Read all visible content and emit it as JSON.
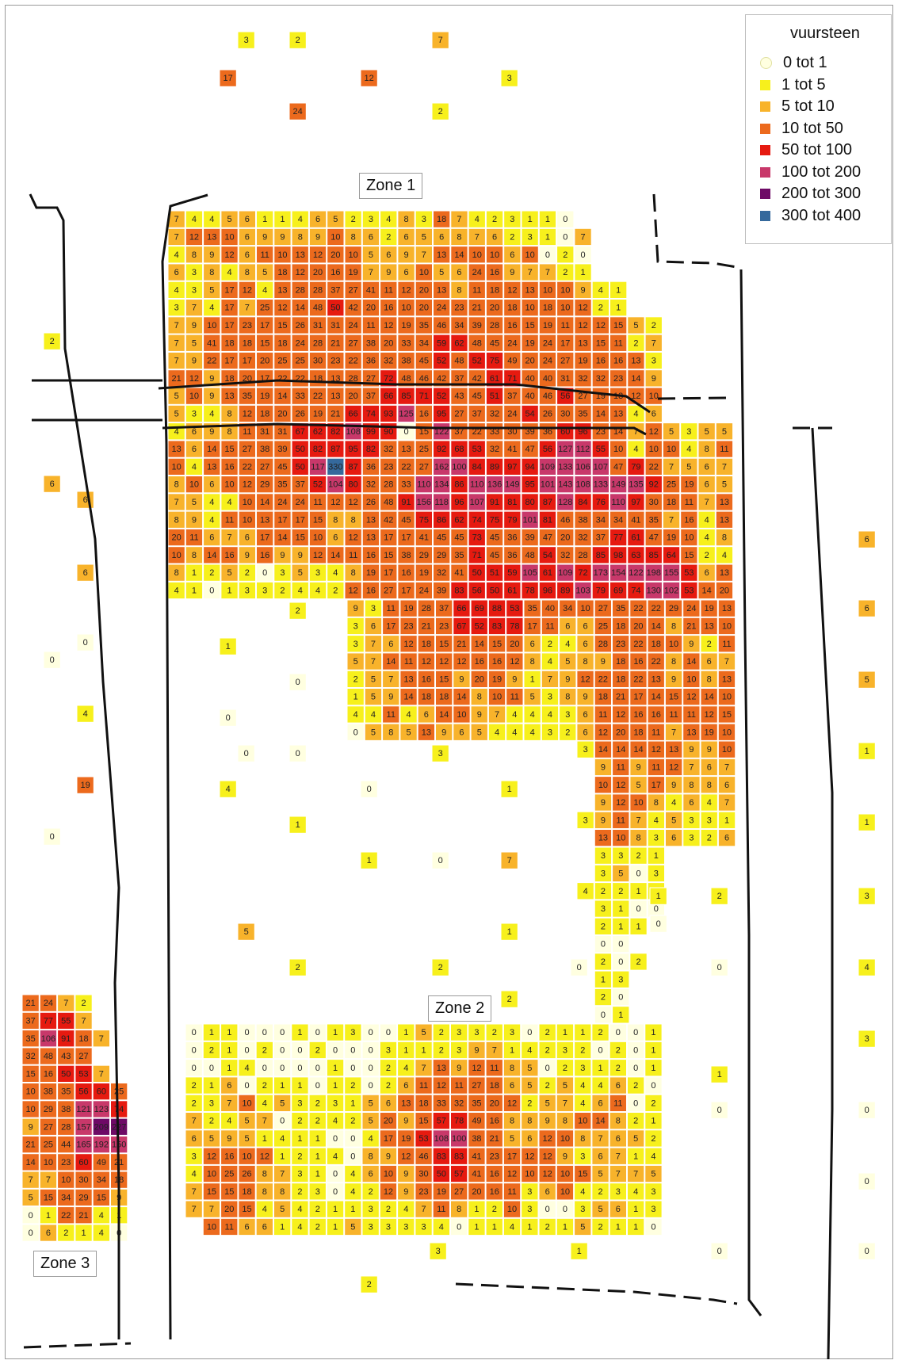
{
  "legend": {
    "title": "vuursteen",
    "items": [
      {
        "label": "0  tot  1",
        "color": "#ffffe0"
      },
      {
        "label": "1  tot  5",
        "color": "#f7f01c"
      },
      {
        "label": "5  tot  10",
        "color": "#f8b32b"
      },
      {
        "label": "10  tot  50",
        "color": "#ec6a1d"
      },
      {
        "label": "50  tot  100",
        "color": "#e61a10"
      },
      {
        "label": "100  tot  200",
        "color": "#c8386a"
      },
      {
        "label": "200  tot  300",
        "color": "#6e0a66"
      },
      {
        "label": "300  tot  400",
        "color": "#35699c"
      }
    ]
  },
  "zones": {
    "zone1": "Zone 1",
    "zone2": "Zone 2",
    "zone3": "Zone 3"
  },
  "zone1_rows": [
    "7 4 4 5 6 1 1 4 6 5 2 3 4 8 3 18 7 4 2 3 1 1 0",
    "7 12 13 10 6 9 9 8 9 10 8 6 2 6 5 6 8 7 6 2 3 1 0 7",
    "4 8 9 12 6 11 10 13 12 20 10 5 6 9 7 13 14 10 10 6 10 0 2 0",
    "6 3 8 4 8 5 18 12 20 16 19 7 9 6 10 5 6 24 16 9 7 7 2 1",
    "4 3 5 17 12 4 13 28 28 37 27 41 11 12 20 13 8 11 18 12 13 10 10 9 4 1",
    "3 7 4 17 7 25 12 14 48 50 42 20 16 10 20 24 23 21 20 18 10 18 10 12 2 1",
    "7 9 10 17 23 17 15 26 31 31 24 11 12 19 35 46 34 39 28 16 15 19 11 12 12 15 5 2",
    "7 5 41 18 18 15 18 24 28 21 27 38 20 33 34 59 62 48 45 24 19 24 17 13 15 11 2 7",
    "7 9 22 17 17 20 25 25 30 23 22 36 32 38 45 52 48 52 75 49 20 24 27 19 16 16 13 3",
    "21 12 9 18 20 17 22 22 18 13 28 27 72 48 46 42 37 42 61 71 40 40 31 32 32 23 14 9",
    "5 10 9 13 35 19 14 33 22 13 20 37 66 85 71 52 43 45 51 37 40 46 56 27 19 13 12 10",
    "5 3 4 8 12 18 20 26 19 21 66 74 93 125 16 95 27 37 32 24 54 26 30 35 14 13 4 6",
    "4 6 9 8 11 31 31 67 62 82 108 99 90 0 15 122 37 22 33 30 39 36 60 96 23 14 7 12 5 3 5 5",
    "13 6 14 15 27 38 39 50 82 87 95 82 32 13 25 92 68 53 32 41 47 56 127 112 55 10 4 10 10 4 8 11",
    "10 4 13 16 22 27 45 50 117 330 87 36 23 22 27 162 100 84 89 97 94 109 133 106 107 47 79 22 7 5 6 7",
    "8 10 6 10 12 29 35 37 52 104 80 32 28 33 110 134 86 110 136 149 95 101 143 108 133 149 135 92 25 19 6 5",
    "7 5 4 4 10 14 24 24 11 12 12 26 48 91 156 118 96 107 91 81 80 87 128 84 76 110 97 30 18 11 7 13",
    "8 9 4 11 10 13 17 17 15 8 8 13 42 45 75 86 62 74 75 79 101 81 46 38 34 34 41 35 7 16 4 13",
    "20 11 6 7 6 17 14 15 10 6 12 13 17 17 41 45 45 73 45 36 39 47 20 32 37 77 61 47 19 10 4 8",
    "10 8 14 16 9 16 9 9 12 14 11 16 15 38 29 29 35 71 45 36 48 54 32 28 85 98 63 85 64 15 2 4",
    "8 1 2 5 2 0 3 5 3 4 8 19 17 16 19 32 41 50 51 59 105 61 109 72 173 154 122 198 155 53 6 13",
    "4 1 0 1 3 3 2 4 4 2 12 16 27 17 24 39 83 56 50 61 78 96 89 103 79 69 74 130 102 53 14 20"
  ],
  "zone1_lower_rows": [
    "9 3 11 19 28 37 66 69 88 53 35 40 34 10 27 35 22 22 29 24 19 13",
    "3 6 17 23 21 23 67 52 83 78 17 11 6 6 25 18 20 14 8 21 13 10",
    "3 7 6 12 18 15 21 14 15 20 6 2 4 6 28 23 22 18 10 9 2 11",
    "5 7 14 11 12 12 12 16 16 12 8 4 5 8 9 18 16 22 8 14 6 7",
    "2 5 7 13 16 15 9 20 19 9 1 7 9 12 22 18 22 13 9 10 8 13",
    "1 5 9 14 18 18 14 8 10 11 5 3 8 9 18 21 17 14 15 12 14 10",
    "4 4 11 4 6 14 10 9 7 4 4 4 3 6 11 12 16 16 11 11 12 15",
    "0 5 8 5 13 9 6 5 4 4 4 3 2 6 12 20 18 11 7 13 19 10"
  ],
  "east_block_rows": [
    "3 14 14 14 12 13 9 9 10",
    "9 11 9 11 12 7 6 7",
    "10 12 5 17 9 8 8 6",
    "9 12 10 8 4 6 4 7",
    "3 9 11 7 4 5 3 3 1",
    "13 10 8 3 6 3 2 6"
  ],
  "corridor_rows": [
    "3 3 2 1",
    "3 5 0 3",
    "4 2 2 1 1",
    "3 1 0 0",
    "2 1 1",
    "0 0",
    "2 0 2",
    "1 3",
    "2 0",
    "0 1"
  ],
  "zone2_rows": [
    "0 1 1 0 0 0 1 0 1 3 0 0 1 5 2 3 3 2 3 0 2 1 1 2 0 0 1",
    "0 2 1 0 2 0 0 2 0 0 0 3 1 1 2 3 9 7 1 4 2 3 2 0 2 0 1",
    "0 0 1 4 0 0 0 0 1 0 0 2 4 7 13 9 12 11 8 5 0 2 3 1 2 0 1",
    "2 1 6 0 2 1 1 0 1 2 0 2 6 11 12 11 27 18 6 5 2 5 4 4 6 2 0",
    "2 3 7 10 4 5 3 2 3 1 5 6 13 18 33 32 35 20 12 2 5 7 4 6 11 0 2",
    "7 2 4 5 7 0 2 2 4 2 5 20 9 15 57 78 49 16 8 8 9 8 10 14 8 2 1",
    "6 5 9 5 1 4 1 1 0 0 4 17 19 53 108 100 38 21 5 6 12 10 8 7 6 5 2",
    "3 12 16 10 12 1 2 1 4 0 8 9 12 46 83 83 41 23 17 12 12 9 3 6 7 1 4",
    "4 10 25 26 8 7 3 1 0 4 6 10 9 30 50 57 41 16 12 10 12 10 15 5 7 7 5",
    "7 15 15 18 8 8 2 3 0 4 2 12 9 23 19 27 20 16 11 3 6 10 4 2 3 4 3",
    "7 7 20 15 4 5 4 2 1 1 3 2 4 7 11 8 1 2 10 3 0 0 3 5 6 1 3",
    "10 11 6 6 1 4 2 1 5 3 3 3 3 4 0 1 1 4 1 2 1 5 2 1 1 0"
  ],
  "zone3_rows": [
    "21 24 7 2",
    "37 77 55 7",
    "35 106 91 18 7",
    "32 48 43 27",
    "15 16 50 53 7",
    "10 38 35 56 60 25",
    "10 29 38 121 123 74",
    "9 27 28 157 209 227",
    "21 25 44 165 192 150",
    "14 10 23 60 49 21",
    "7 7 10 30 34 18",
    "5 15 34 29 15 9",
    "0 1 22 21 4 1",
    "0 6 2 1 4 0"
  ],
  "isolated_cells": [
    "3",
    "2",
    "7",
    "17",
    "12",
    "3",
    "24",
    "2",
    "2",
    "6",
    "6",
    "6",
    "0",
    "0",
    "4",
    "19",
    "0",
    "2",
    "1",
    "0",
    "0",
    "0",
    "0",
    "3",
    "4",
    "0",
    "1",
    "1",
    "1",
    "0",
    "7",
    "5",
    "1",
    "2",
    "2",
    "2",
    "0",
    "1",
    "0",
    "2",
    "0",
    "1",
    "0",
    "6",
    "6",
    "5",
    "1",
    "1",
    "3",
    "4",
    "3",
    "0",
    "0",
    "3",
    "1",
    "0",
    "0",
    "2"
  ]
}
